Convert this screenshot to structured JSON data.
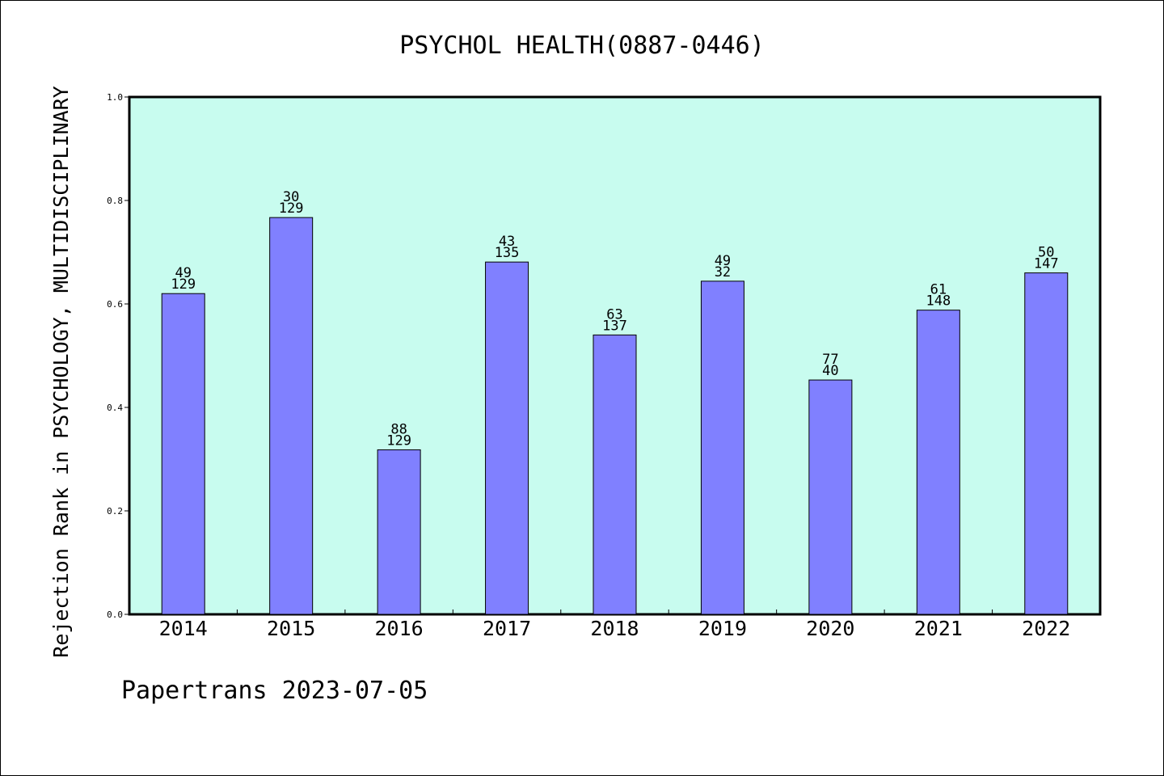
{
  "chart_data": {
    "type": "bar",
    "title": "PSYCHOL HEALTH(0887-0446)",
    "ylabel": "Rejection Rank in PSYCHOLOGY, MULTIDISCIPLINARY",
    "xlabel": "",
    "categories": [
      "2014",
      "2015",
      "2016",
      "2017",
      "2018",
      "2019",
      "2020",
      "2021",
      "2022"
    ],
    "values": [
      0.62,
      0.767,
      0.318,
      0.681,
      0.54,
      0.644,
      0.453,
      0.588,
      0.66
    ],
    "label_top": [
      "49",
      "30",
      "88",
      "43",
      "63",
      "49",
      "77",
      "61",
      "50"
    ],
    "label_bottom": [
      "129",
      "129",
      "129",
      "135",
      "137",
      "32",
      "40",
      "148",
      "147"
    ],
    "ylim": [
      0,
      1.0
    ],
    "yticks": [
      "0.0",
      "0.2",
      "0.4",
      "0.6",
      "0.8",
      "1.0"
    ],
    "footer": "Papertrans 2023-07-05",
    "colors": {
      "plot_bg": "#c8fcef",
      "bar": "#8080ff",
      "axis": "#000000"
    }
  }
}
